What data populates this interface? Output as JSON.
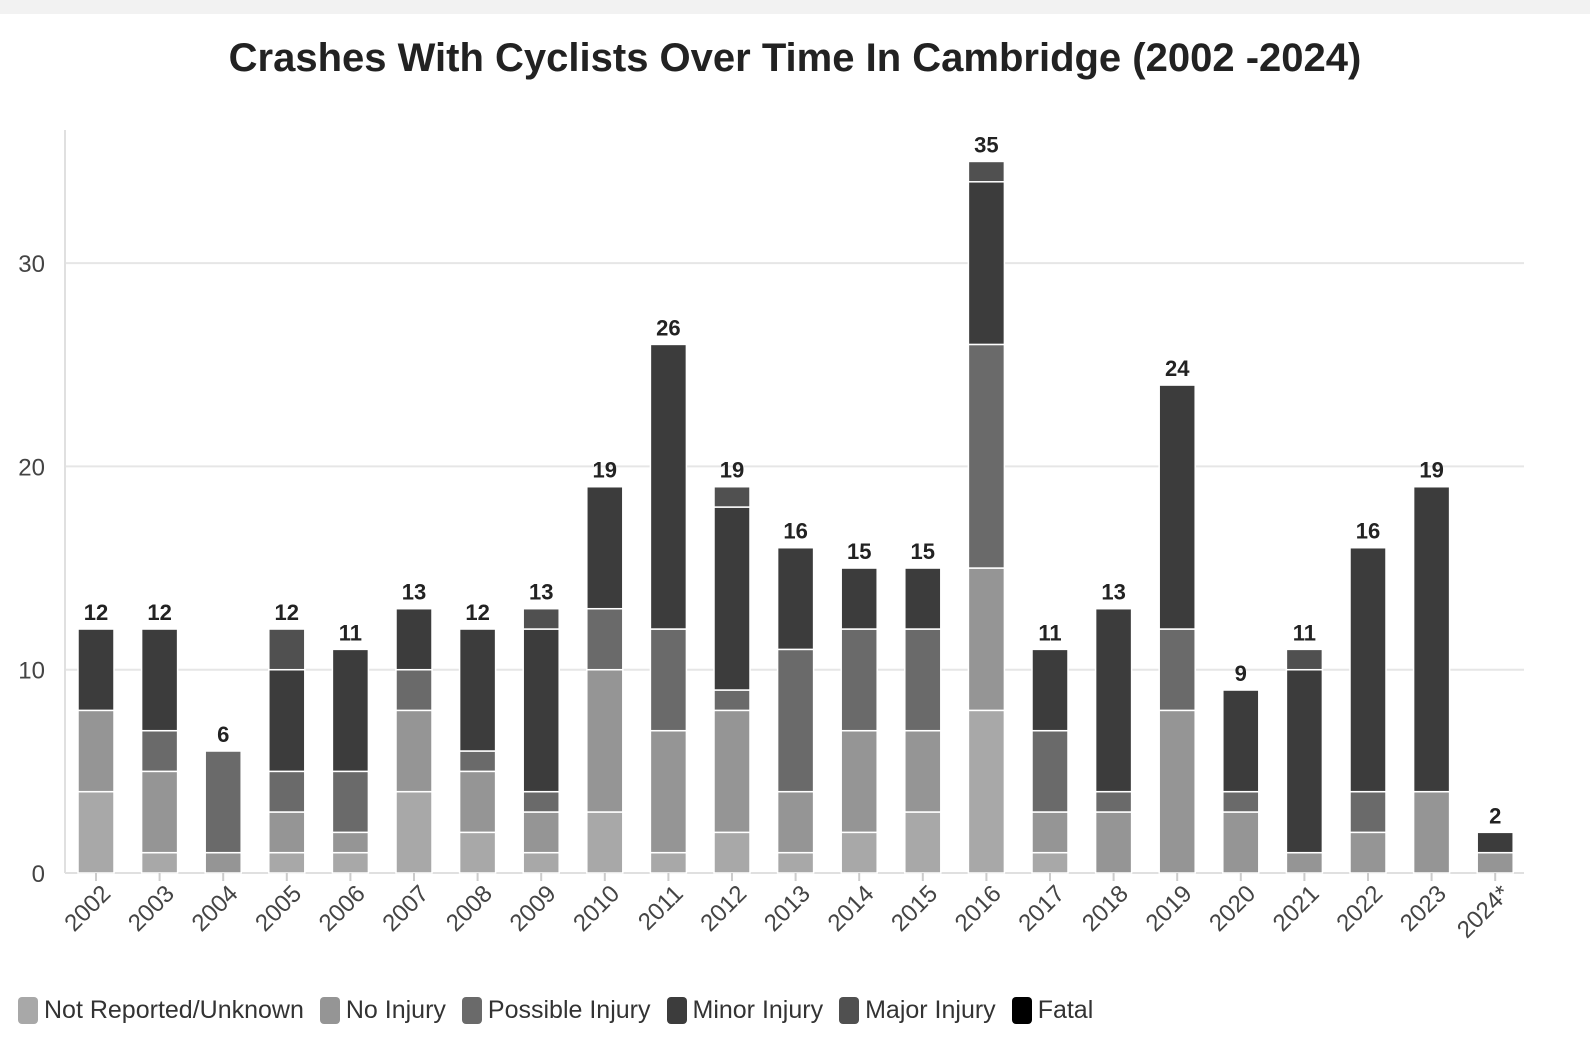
{
  "chart_data": {
    "type": "bar",
    "stacked": true,
    "title": "Crashes With Cyclists Over Time In Cambridge (2002 -2024)",
    "xlabel": "",
    "ylabel": "",
    "ylim": [
      0,
      36
    ],
    "yticks": [
      0,
      10,
      20,
      30
    ],
    "grid": true,
    "legend_position": "bottom-left",
    "categories": [
      "2002",
      "2003",
      "2004",
      "2005",
      "2006",
      "2007",
      "2008",
      "2009",
      "2010",
      "2011",
      "2012",
      "2013",
      "2014",
      "2015",
      "2016",
      "2017",
      "2018",
      "2019",
      "2020",
      "2021",
      "2022",
      "2023",
      "2024*"
    ],
    "series": [
      {
        "name": "Not Reported/Unknown",
        "color": "#a8a8a8",
        "values": [
          4,
          1,
          0,
          1,
          1,
          4,
          2,
          1,
          3,
          1,
          2,
          1,
          2,
          3,
          8,
          1,
          0,
          0,
          0,
          0,
          0,
          0,
          0
        ]
      },
      {
        "name": "No Injury",
        "color": "#959595",
        "values": [
          4,
          4,
          1,
          2,
          1,
          4,
          3,
          2,
          7,
          6,
          6,
          3,
          5,
          4,
          7,
          2,
          3,
          8,
          3,
          1,
          2,
          4,
          1
        ]
      },
      {
        "name": "Possible Injury",
        "color": "#6a6a6a",
        "values": [
          0,
          2,
          5,
          2,
          3,
          2,
          1,
          1,
          3,
          5,
          1,
          7,
          5,
          5,
          11,
          4,
          1,
          4,
          1,
          0,
          2,
          0,
          0
        ]
      },
      {
        "name": "Minor Injury",
        "color": "#3c3c3c",
        "values": [
          4,
          5,
          0,
          5,
          6,
          3,
          6,
          8,
          6,
          14,
          9,
          5,
          3,
          3,
          8,
          4,
          9,
          12,
          5,
          9,
          12,
          15,
          1
        ]
      },
      {
        "name": "Major Injury",
        "color": "#505050",
        "values": [
          0,
          0,
          0,
          2,
          0,
          0,
          0,
          1,
          0,
          0,
          1,
          0,
          0,
          0,
          1,
          0,
          0,
          0,
          0,
          1,
          0,
          0,
          0
        ]
      },
      {
        "name": "Fatal",
        "color": "#000000",
        "values": [
          0,
          0,
          0,
          0,
          0,
          0,
          0,
          0,
          0,
          0,
          0,
          0,
          0,
          0,
          0,
          0,
          0,
          0,
          0,
          0,
          0,
          0,
          0
        ]
      }
    ],
    "totals": [
      12,
      12,
      6,
      12,
      11,
      13,
      12,
      13,
      19,
      26,
      19,
      16,
      15,
      15,
      35,
      11,
      13,
      24,
      9,
      11,
      16,
      19,
      2
    ]
  }
}
